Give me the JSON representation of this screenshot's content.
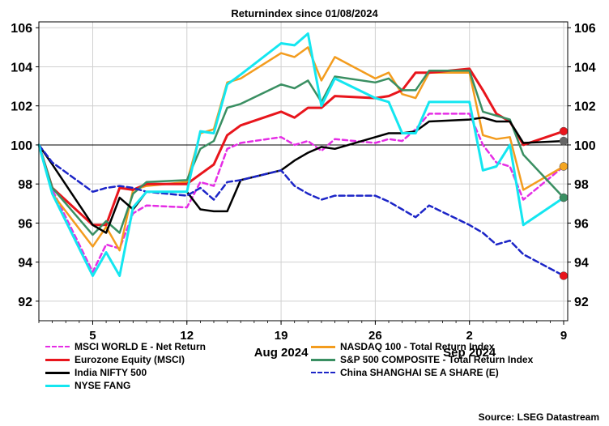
{
  "chart_data": {
    "type": "line",
    "title": "Returnindex    since 01/08/2024",
    "ylim": [
      91,
      106.3
    ],
    "yticks": [
      92,
      94,
      96,
      98,
      100,
      102,
      104,
      106
    ],
    "ytick_labels": [
      "92",
      "94",
      "96",
      "98",
      "100",
      "102",
      "104",
      "106"
    ],
    "reference_line": 100,
    "x_day_range": [
      1,
      9.6
    ],
    "x_axis": {
      "ticks": [
        {
          "label": "5",
          "day": 5
        },
        {
          "label": "12",
          "day": 12
        },
        {
          "label": "19",
          "day": 19
        },
        {
          "label": "26",
          "day": 26
        },
        {
          "label": "2",
          "day": 33
        },
        {
          "label": "9",
          "day": 40
        }
      ],
      "months": [
        {
          "label": "Aug 2024",
          "day": 19
        },
        {
          "label": "Sep 2024",
          "day": 33
        }
      ],
      "day_start": 1,
      "day_end": 40.3
    },
    "x": [
      1,
      2,
      5,
      6,
      7,
      8,
      9,
      12,
      13,
      14,
      15,
      16,
      19,
      20,
      21,
      22,
      23,
      26,
      27,
      28,
      29,
      30,
      33,
      34,
      35,
      36,
      37,
      40
    ],
    "series": [
      {
        "name": "MSCI WORLD E - Net Return",
        "color": "#e52de5",
        "dash": "6,4",
        "width": 2.5,
        "marker": "#e52de5",
        "values": [
          100.0,
          97.7,
          93.5,
          94.9,
          94.7,
          96.5,
          96.9,
          96.8,
          98.1,
          97.9,
          99.8,
          100.1,
          100.4,
          100.0,
          100.2,
          99.7,
          100.3,
          100.1,
          100.3,
          100.2,
          100.8,
          101.6,
          101.6,
          100.0,
          99.1,
          98.9,
          97.2,
          98.9
        ]
      },
      {
        "name": "NASDAQ 100 - Total Return Index",
        "color": "#f39c1e",
        "dash": "",
        "width": 2.5,
        "marker": "#f5a623",
        "values": [
          100.0,
          97.5,
          94.8,
          95.8,
          94.6,
          97.7,
          97.9,
          98.1,
          100.6,
          100.8,
          103.2,
          103.4,
          104.7,
          104.5,
          105.0,
          103.3,
          104.5,
          103.4,
          103.7,
          102.6,
          102.4,
          103.7,
          103.7,
          100.5,
          100.3,
          100.4,
          97.7,
          98.9
        ]
      },
      {
        "name": "Eurozone Equity (MSCI)",
        "color": "#e8151c",
        "dash": "",
        "width": 3,
        "marker": "#e8151c",
        "values": [
          100.0,
          97.8,
          95.9,
          95.9,
          97.8,
          97.7,
          98.0,
          98.0,
          98.5,
          99.0,
          100.5,
          101.0,
          101.7,
          101.4,
          101.9,
          101.9,
          102.5,
          102.4,
          102.5,
          102.8,
          103.7,
          103.7,
          103.9,
          102.8,
          101.6,
          101.2,
          100.0,
          100.7
        ]
      },
      {
        "name": "S&P 500 COMPOSITE - Total Return Index",
        "color": "#3a8f62",
        "dash": "",
        "width": 2.5,
        "marker": "#3a8f62",
        "values": [
          100.0,
          97.8,
          95.4,
          96.1,
          95.5,
          97.5,
          98.1,
          98.2,
          99.8,
          100.2,
          101.9,
          102.1,
          103.1,
          102.9,
          103.3,
          102.2,
          103.5,
          103.2,
          103.4,
          102.8,
          102.8,
          103.8,
          103.8,
          101.7,
          101.5,
          101.3,
          99.5,
          97.3
        ]
      },
      {
        "name": "India NIFTY 500",
        "color": "#000000",
        "dash": "",
        "width": 2.5,
        "marker": "#666666",
        "values": [
          100.0,
          99.0,
          95.9,
          95.5,
          97.3,
          96.7,
          97.6,
          97.6,
          96.7,
          96.6,
          96.6,
          98.2,
          98.7,
          99.2,
          99.6,
          99.9,
          99.8,
          100.4,
          100.6,
          100.6,
          100.7,
          101.2,
          101.3,
          101.4,
          101.2,
          101.2,
          100.1,
          100.2
        ]
      },
      {
        "name": "China SHANGHAI SE A SHARE (E)",
        "color": "#1c25c7",
        "dash": "7,4",
        "width": 2.5,
        "marker": "#e8151c",
        "values": [
          100.0,
          99.1,
          97.6,
          97.8,
          97.9,
          97.8,
          97.6,
          97.4,
          97.8,
          97.2,
          98.1,
          98.2,
          98.7,
          97.9,
          97.5,
          97.2,
          97.4,
          97.4,
          97.1,
          96.7,
          96.3,
          96.9,
          95.9,
          95.5,
          94.9,
          95.1,
          94.4,
          93.3
        ]
      },
      {
        "name": "NYSE FANG",
        "color": "#14e6f0",
        "dash": "",
        "width": 3,
        "marker": "#3a8f62",
        "values": [
          100.0,
          97.5,
          93.3,
          94.5,
          93.3,
          96.8,
          97.6,
          97.6,
          100.7,
          100.6,
          103.1,
          103.6,
          105.2,
          105.1,
          105.7,
          102.0,
          103.4,
          102.4,
          102.2,
          100.6,
          100.6,
          102.2,
          102.2,
          98.7,
          98.9,
          100.0,
          95.9,
          97.3
        ]
      }
    ]
  },
  "legend": {
    "col1": [
      "MSCI WORLD E - Net Return",
      "Eurozone Equity (MSCI)",
      "India NIFTY 500",
      "NYSE FANG"
    ],
    "col2": [
      "NASDAQ 100 - Total Return Index",
      "S&P 500 COMPOSITE - Total Return Index",
      "China SHANGHAI SE A SHARE (E)"
    ]
  },
  "source": "Source: LSEG Datastream"
}
